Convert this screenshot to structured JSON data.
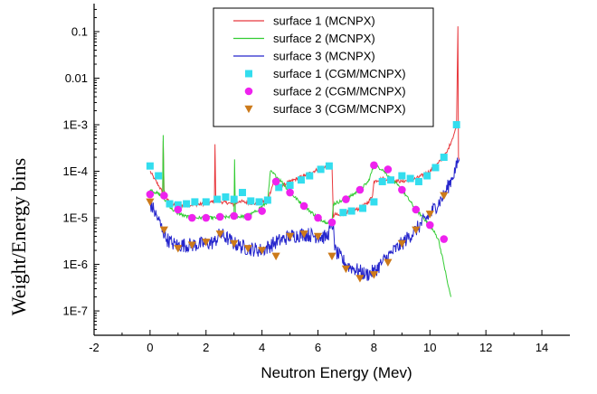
{
  "chart_data": {
    "type": "line",
    "title": "",
    "xlabel": "Neutron Energy (Mev)",
    "ylabel": "Weight/Energy bins",
    "xlim": [
      -2,
      15
    ],
    "ylim": [
      3e-08,
      0.4
    ],
    "yscale": "log",
    "x_ticks": [
      -2,
      0,
      2,
      4,
      6,
      8,
      10,
      12,
      14
    ],
    "x_tick_labels": [
      "-2",
      "0",
      "2",
      "4",
      "6",
      "8",
      "10",
      "12",
      "14"
    ],
    "y_ticks": [
      1e-07,
      1e-06,
      1e-05,
      0.0001,
      0.001,
      0.01,
      0.1
    ],
    "y_tick_labels": [
      "1E-7",
      "1E-6",
      "1E-5",
      "1E-4",
      "1E-3",
      "0.01",
      "0.1"
    ],
    "grid": false,
    "legend_position": "top-center",
    "series": [
      {
        "name": "surface 1 (MCNPX)",
        "kind": "line",
        "color": "#e8383d",
        "x": [
          0.0,
          0.15,
          0.3,
          0.45,
          0.47,
          0.5,
          0.6,
          0.8,
          1.0,
          1.5,
          2.0,
          2.3,
          2.32,
          2.35,
          2.5,
          2.8,
          3.0,
          3.2,
          3.5,
          3.8,
          4.0,
          4.2,
          4.4,
          4.6,
          5.0,
          5.5,
          6.0,
          6.3,
          6.5,
          6.55,
          6.6,
          6.8,
          7.0,
          7.2,
          7.5,
          7.8,
          7.95,
          8.0,
          8.3,
          8.6,
          9.0,
          9.5,
          10.0,
          10.3,
          10.6,
          10.8,
          10.95,
          11.0,
          11.02,
          11.05
        ],
        "y": [
          0.0001,
          7e-05,
          5e-05,
          3.5e-05,
          0.00045,
          4e-05,
          2.5e-05,
          1.9e-05,
          1.8e-05,
          1.9e-05,
          2e-05,
          2.3e-05,
          0.00038,
          2.5e-05,
          2.2e-05,
          2.1e-05,
          1.9e-05,
          2.3e-05,
          2.1e-05,
          2e-05,
          2.2e-05,
          2.4e-05,
          5.5e-05,
          4.5e-05,
          6e-05,
          8e-05,
          0.00011,
          0.00013,
          0.00014,
          1e-05,
          1.2e-05,
          1.1e-05,
          1.3e-05,
          1.4e-05,
          1.6e-05,
          2.2e-05,
          3e-05,
          6e-05,
          7e-05,
          6.5e-05,
          6e-05,
          7e-05,
          0.0001,
          0.00015,
          0.00025,
          0.0005,
          0.0009,
          0.13,
          0.0002,
          0.00018
        ]
      },
      {
        "name": "surface 2 (MCNPX)",
        "kind": "line",
        "color": "#33cc33",
        "x": [
          0.0,
          0.2,
          0.4,
          0.45,
          0.47,
          0.5,
          0.8,
          1.2,
          1.5,
          2.0,
          2.5,
          2.8,
          3.0,
          3.02,
          3.05,
          3.2,
          3.5,
          3.8,
          4.2,
          4.3,
          4.4,
          4.7,
          5.0,
          5.5,
          6.0,
          6.3,
          6.5,
          6.55,
          7.0,
          7.5,
          7.8,
          8.0,
          8.3,
          8.6,
          9.0,
          9.5,
          10.0,
          10.3,
          10.5,
          10.65,
          10.75
        ],
        "y": [
          4e-05,
          3.5e-05,
          3e-05,
          3.2e-05,
          0.0006,
          2.5e-05,
          1.5e-05,
          1.1e-05,
          1e-05,
          1e-05,
          1e-05,
          1.05e-05,
          1.1e-05,
          0.00018,
          1.1e-05,
          1.05e-05,
          1.1e-05,
          1.4e-05,
          2.2e-05,
          0.0001,
          9e-05,
          6e-05,
          3.5e-05,
          1.8e-05,
          1e-05,
          8e-06,
          8e-06,
          2e-05,
          2.5e-05,
          4e-05,
          6e-05,
          0.000135,
          0.00011,
          7e-05,
          4e-05,
          1.5e-05,
          7e-06,
          3.5e-06,
          1e-06,
          3.5e-07,
          2e-07
        ]
      },
      {
        "name": "surface 3 (MCNPX)",
        "kind": "line",
        "color": "#2525cc",
        "x": [
          0.0,
          0.15,
          0.3,
          0.45,
          0.6,
          0.8,
          1.0,
          1.5,
          2.0,
          2.3,
          2.5,
          2.8,
          3.0,
          3.2,
          3.5,
          4.0,
          4.5,
          5.0,
          5.5,
          6.0,
          6.3,
          6.55,
          6.6,
          7.0,
          7.3,
          7.5,
          7.7,
          8.0,
          8.3,
          8.6,
          9.0,
          9.5,
          10.0,
          10.5,
          10.8,
          11.0,
          11.05
        ],
        "y": [
          2e-05,
          1.4e-05,
          9e-06,
          5.5e-06,
          3.5e-06,
          2.8e-06,
          2.6e-06,
          2.6e-06,
          2.8e-06,
          3e-06,
          4.5e-06,
          3.5e-06,
          2.8e-06,
          2.5e-06,
          2.2e-06,
          2e-06,
          3e-06,
          4e-06,
          4.5e-06,
          4e-06,
          3.8e-06,
          8e-06,
          2e-06,
          1e-06,
          8e-07,
          7e-07,
          6e-07,
          7e-07,
          1.1e-06,
          1.7e-06,
          2.8e-06,
          5.5e-06,
          1.2e-05,
          3e-05,
          7.5e-05,
          0.00015,
          0.00018
        ]
      },
      {
        "name": "surface 1 (CGM/MCNPX)",
        "kind": "marker",
        "marker": "square",
        "color": "#33ddee",
        "x": [
          0.0,
          0.3,
          0.7,
          1.0,
          1.3,
          1.6,
          2.0,
          2.4,
          2.7,
          3.0,
          3.3,
          3.6,
          3.9,
          4.2,
          4.6,
          5.0,
          5.4,
          5.7,
          6.1,
          6.4,
          6.9,
          7.2,
          7.6,
          8.0,
          8.3,
          8.6,
          9.0,
          9.3,
          9.6,
          9.9,
          10.2,
          10.5,
          10.95
        ],
        "y": [
          0.00013,
          8e-05,
          2e-05,
          1.9e-05,
          2e-05,
          2.2e-05,
          2.2e-05,
          2.5e-05,
          2.8e-05,
          2.5e-05,
          3.5e-05,
          2.3e-05,
          2.2e-05,
          2.4e-05,
          4.5e-05,
          5e-05,
          6.5e-05,
          8e-05,
          0.00011,
          0.00013,
          1.3e-05,
          1.4e-05,
          1.6e-05,
          2.2e-05,
          6e-05,
          6.5e-05,
          8e-05,
          7e-05,
          6e-05,
          8e-05,
          0.00012,
          0.0002,
          0.001
        ]
      },
      {
        "name": "surface 2 (CGM/MCNPX)",
        "kind": "marker",
        "marker": "circle",
        "color": "#ee22ee",
        "x": [
          0.0,
          0.5,
          1.0,
          1.5,
          2.0,
          2.5,
          3.0,
          3.5,
          4.0,
          4.5,
          5.0,
          5.5,
          6.0,
          6.5,
          7.0,
          7.5,
          8.0,
          8.5,
          9.0,
          9.5,
          10.0,
          10.5
        ],
        "y": [
          3.2e-05,
          3e-05,
          1.5e-05,
          1e-05,
          1e-05,
          1.05e-05,
          1.1e-05,
          1.05e-05,
          1.4e-05,
          6e-05,
          3.5e-05,
          1.8e-05,
          1e-05,
          8e-06,
          2.5e-05,
          4e-05,
          0.000135,
          0.00011,
          4e-05,
          1.5e-05,
          7e-06,
          3.5e-06
        ]
      },
      {
        "name": "surface 3 (CGM/MCNPX)",
        "kind": "marker",
        "marker": "triangle-down",
        "color": "#cc7a1a",
        "x": [
          0.0,
          0.5,
          1.0,
          1.5,
          2.0,
          2.5,
          3.0,
          3.5,
          4.0,
          4.5,
          5.0,
          5.5,
          6.0,
          6.5,
          7.0,
          7.5,
          8.0,
          8.5,
          9.0,
          9.5,
          10.0,
          10.5
        ],
        "y": [
          2.2e-05,
          5.5e-06,
          2.2e-06,
          2.6e-06,
          3e-06,
          4.5e-06,
          2.8e-06,
          2.2e-06,
          2e-06,
          1.5e-06,
          4e-06,
          4.5e-06,
          4e-06,
          1.5e-06,
          8e-07,
          5e-07,
          6e-07,
          1.1e-06,
          2.8e-06,
          5.5e-06,
          1.2e-05,
          3e-05
        ]
      }
    ]
  }
}
